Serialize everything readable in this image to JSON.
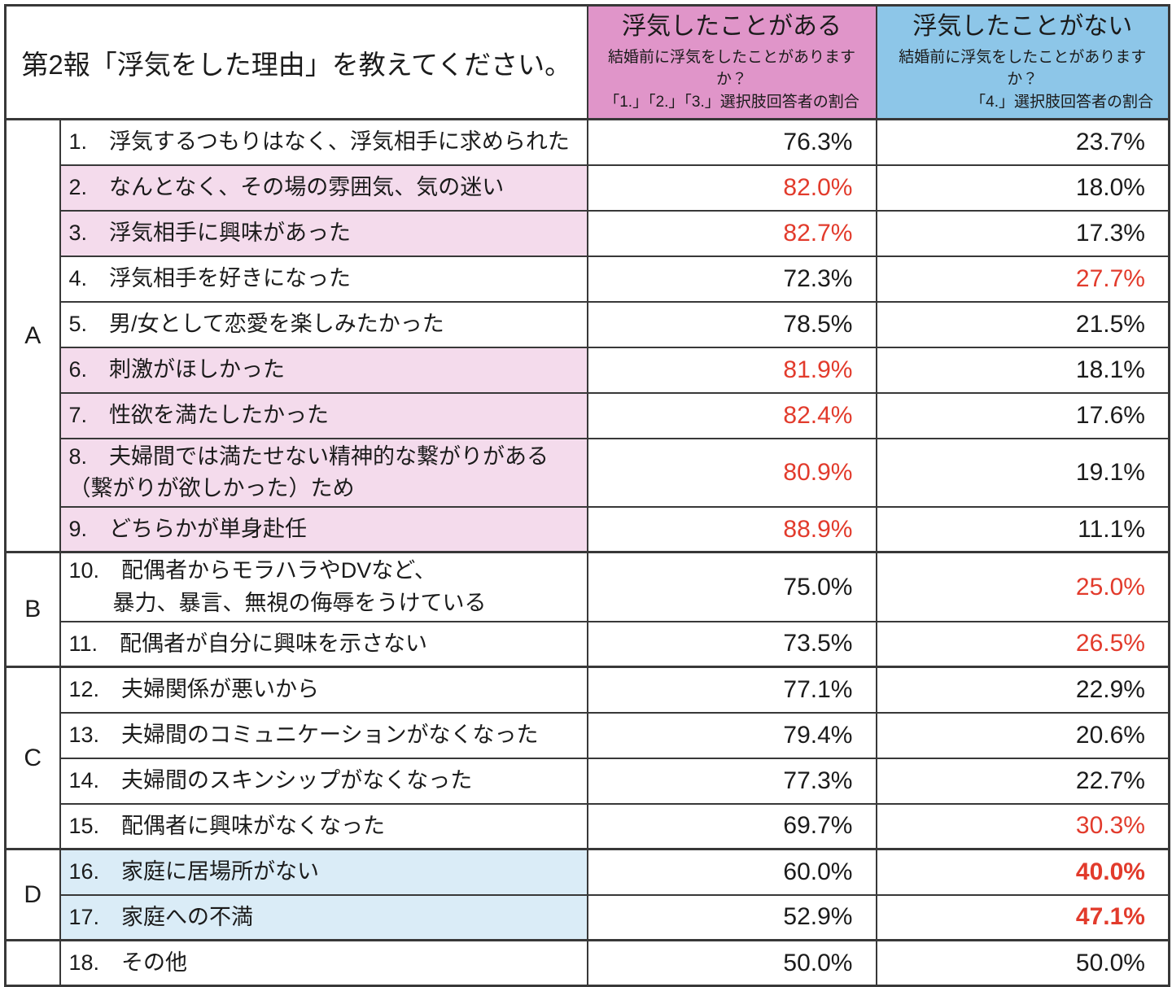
{
  "header": {
    "title": "第2報「浮気をした理由」を教えてください。",
    "col_yes": {
      "label": "浮気したことがある",
      "sub1": "結婚前に浮気をしたことがありますか？",
      "sub2": "「1.」「2.」「3.」選択肢回答者の割合"
    },
    "col_no": {
      "label": "浮気したことがない",
      "sub1": "結婚前に浮気をしたことがありますか？",
      "sub2": "「4.」選択肢回答者の割合"
    }
  },
  "table": {
    "groups": [
      {
        "label": "A",
        "rows": 9
      },
      {
        "label": "B",
        "rows": 2
      },
      {
        "label": "C",
        "rows": 4
      },
      {
        "label": "D",
        "rows": 2
      },
      {
        "label": "",
        "rows": 1
      }
    ],
    "rows": [
      {
        "lines": [
          "1.　浮気するつもりはなく、浮気相手に求められた"
        ],
        "hl": "none",
        "tall": false,
        "yes": "76.3%",
        "no": "23.7%",
        "yes_style": "",
        "no_style": ""
      },
      {
        "lines": [
          "2.　なんとなく、その場の雰囲気、気の迷い"
        ],
        "hl": "pink",
        "tall": false,
        "yes": "82.0%",
        "no": "18.0%",
        "yes_style": "red",
        "no_style": ""
      },
      {
        "lines": [
          "3.　浮気相手に興味があった"
        ],
        "hl": "pink",
        "tall": false,
        "yes": "82.7%",
        "no": "17.3%",
        "yes_style": "red",
        "no_style": ""
      },
      {
        "lines": [
          "4.　浮気相手を好きになった"
        ],
        "hl": "none",
        "tall": false,
        "yes": "72.3%",
        "no": "27.7%",
        "yes_style": "",
        "no_style": "red"
      },
      {
        "lines": [
          "5.　男/女として恋愛を楽しみたかった"
        ],
        "hl": "none",
        "tall": false,
        "yes": "78.5%",
        "no": "21.5%",
        "yes_style": "",
        "no_style": ""
      },
      {
        "lines": [
          "6.　刺激がほしかった"
        ],
        "hl": "pink",
        "tall": false,
        "yes": "81.9%",
        "no": "18.1%",
        "yes_style": "red",
        "no_style": ""
      },
      {
        "lines": [
          "7.　性欲を満たしたかった"
        ],
        "hl": "pink",
        "tall": false,
        "yes": "82.4%",
        "no": "17.6%",
        "yes_style": "red",
        "no_style": ""
      },
      {
        "lines": [
          "8.　夫婦間では満たせない精神的な繋がりがある",
          "（繋がりが欲しかった）ため"
        ],
        "hl": "pink",
        "tall": true,
        "yes": "80.9%",
        "no": "19.1%",
        "yes_style": "red",
        "no_style": ""
      },
      {
        "lines": [
          "9.　どちらかが単身赴任"
        ],
        "hl": "pink",
        "tall": false,
        "yes": "88.9%",
        "no": "11.1%",
        "yes_style": "red",
        "no_style": ""
      },
      {
        "lines": [
          "10.　配偶者からモラハラやDVなど、",
          "　　暴力、暴言、無視の侮辱をうけている"
        ],
        "hl": "none",
        "tall": true,
        "yes": "75.0%",
        "no": "25.0%",
        "yes_style": "",
        "no_style": "red"
      },
      {
        "lines": [
          "11.　配偶者が自分に興味を示さない"
        ],
        "hl": "none",
        "tall": false,
        "yes": "73.5%",
        "no": "26.5%",
        "yes_style": "",
        "no_style": "red"
      },
      {
        "lines": [
          "12.　夫婦関係が悪いから"
        ],
        "hl": "none",
        "tall": false,
        "yes": "77.1%",
        "no": "22.9%",
        "yes_style": "",
        "no_style": ""
      },
      {
        "lines": [
          "13.　夫婦間のコミュニケーションがなくなった"
        ],
        "hl": "none",
        "tall": false,
        "yes": "79.4%",
        "no": "20.6%",
        "yes_style": "",
        "no_style": ""
      },
      {
        "lines": [
          "14.　夫婦間のスキンシップがなくなった"
        ],
        "hl": "none",
        "tall": false,
        "yes": "77.3%",
        "no": "22.7%",
        "yes_style": "",
        "no_style": ""
      },
      {
        "lines": [
          "15.　配偶者に興味がなくなった"
        ],
        "hl": "none",
        "tall": false,
        "yes": "69.7%",
        "no": "30.3%",
        "yes_style": "",
        "no_style": "red"
      },
      {
        "lines": [
          "16.　家庭に居場所がない"
        ],
        "hl": "blue",
        "tall": false,
        "yes": "60.0%",
        "no": "40.0%",
        "yes_style": "",
        "no_style": "red-bold"
      },
      {
        "lines": [
          "17.　家庭への不満"
        ],
        "hl": "blue",
        "tall": false,
        "yes": "52.9%",
        "no": "47.1%",
        "yes_style": "",
        "no_style": "red-bold"
      },
      {
        "lines": [
          "18.　その他"
        ],
        "hl": "none",
        "tall": false,
        "yes": "50.0%",
        "no": "50.0%",
        "yes_style": "",
        "no_style": ""
      }
    ]
  },
  "colors": {
    "header_pink": "#E095C9",
    "header_blue": "#8DC6E8",
    "row_highlight_pink": "#F4DBEC",
    "row_highlight_blue": "#DAECF7",
    "value_red": "#E23B2C",
    "border": "#383838"
  },
  "chart_data": {
    "type": "table",
    "title": "第2報「浮気をした理由」を教えてください。",
    "columns": [
      "浮気したことがある（結婚前に浮気をしたことがありますか？「1.」「2.」「3.」選択肢回答者の割合）",
      "浮気したことがない（結婚前に浮気をしたことがありますか？「4.」選択肢回答者の割合）"
    ],
    "rows": [
      {
        "group": "A",
        "no": 1,
        "reason": "浮気するつもりはなく、浮気相手に求められた",
        "yes_pct": 76.3,
        "no_pct": 23.7
      },
      {
        "group": "A",
        "no": 2,
        "reason": "なんとなく、その場の雰囲気、気の迷い",
        "yes_pct": 82.0,
        "no_pct": 18.0
      },
      {
        "group": "A",
        "no": 3,
        "reason": "浮気相手に興味があった",
        "yes_pct": 82.7,
        "no_pct": 17.3
      },
      {
        "group": "A",
        "no": 4,
        "reason": "浮気相手を好きになった",
        "yes_pct": 72.3,
        "no_pct": 27.7
      },
      {
        "group": "A",
        "no": 5,
        "reason": "男/女として恋愛を楽しみたかった",
        "yes_pct": 78.5,
        "no_pct": 21.5
      },
      {
        "group": "A",
        "no": 6,
        "reason": "刺激がほしかった",
        "yes_pct": 81.9,
        "no_pct": 18.1
      },
      {
        "group": "A",
        "no": 7,
        "reason": "性欲を満たしたかった",
        "yes_pct": 82.4,
        "no_pct": 17.6
      },
      {
        "group": "A",
        "no": 8,
        "reason": "夫婦間では満たせない精神的な繋がりがある（繋がりが欲しかった）ため",
        "yes_pct": 80.9,
        "no_pct": 19.1
      },
      {
        "group": "A",
        "no": 9,
        "reason": "どちらかが単身赴任",
        "yes_pct": 88.9,
        "no_pct": 11.1
      },
      {
        "group": "B",
        "no": 10,
        "reason": "配偶者からモラハラやDVなど、暴力、暴言、無視の侮辱をうけている",
        "yes_pct": 75.0,
        "no_pct": 25.0
      },
      {
        "group": "B",
        "no": 11,
        "reason": "配偶者が自分に興味を示さない",
        "yes_pct": 73.5,
        "no_pct": 26.5
      },
      {
        "group": "C",
        "no": 12,
        "reason": "夫婦関係が悪いから",
        "yes_pct": 77.1,
        "no_pct": 22.9
      },
      {
        "group": "C",
        "no": 13,
        "reason": "夫婦間のコミュニケーションがなくなった",
        "yes_pct": 79.4,
        "no_pct": 20.6
      },
      {
        "group": "C",
        "no": 14,
        "reason": "夫婦間のスキンシップがなくなった",
        "yes_pct": 77.3,
        "no_pct": 22.7
      },
      {
        "group": "C",
        "no": 15,
        "reason": "配偶者に興味がなくなった",
        "yes_pct": 69.7,
        "no_pct": 30.3
      },
      {
        "group": "D",
        "no": 16,
        "reason": "家庭に居場所がない",
        "yes_pct": 60.0,
        "no_pct": 40.0
      },
      {
        "group": "D",
        "no": 17,
        "reason": "家庭への不満",
        "yes_pct": 52.9,
        "no_pct": 47.1
      },
      {
        "group": "",
        "no": 18,
        "reason": "その他",
        "yes_pct": 50.0,
        "no_pct": 50.0
      }
    ],
    "highlighted_pink_rows": [
      2,
      3,
      6,
      7,
      8,
      9
    ],
    "highlighted_blue_rows": [
      16,
      17
    ],
    "red_yes_values": [
      2,
      3,
      6,
      7,
      8,
      9
    ],
    "red_no_values": [
      4,
      10,
      11,
      15,
      16,
      17
    ],
    "bold_red_no_values": [
      16,
      17
    ]
  }
}
